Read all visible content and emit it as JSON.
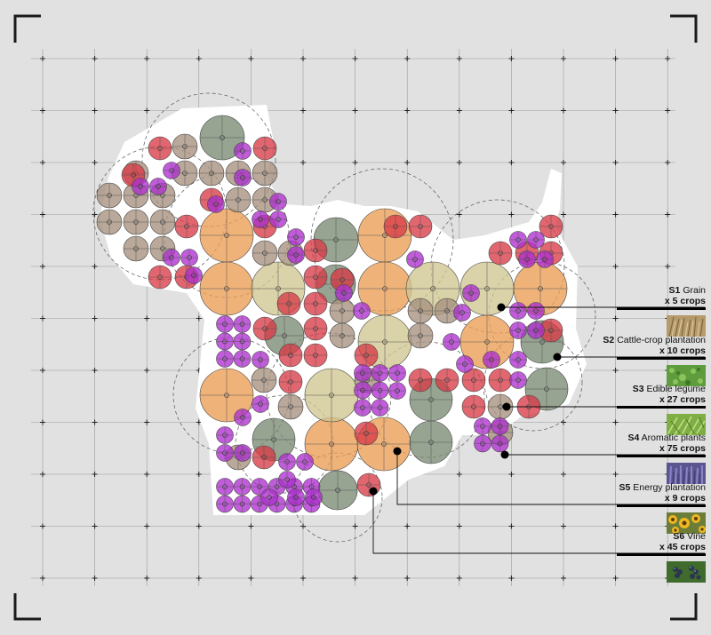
{
  "legend": [
    {
      "code": "S1",
      "name": "Grain",
      "count": "x 5 crops",
      "swatch": "grain-photo",
      "color": "#c9b894"
    },
    {
      "code": "S2",
      "name": "Cattle-crop plantation",
      "count": "x 10 crops",
      "swatch": "grass-photo",
      "color": "#6da84a"
    },
    {
      "code": "S3",
      "name": "Edible legume",
      "count": "x 27 crops",
      "swatch": "legume-photo",
      "color": "#8fb850"
    },
    {
      "code": "S4",
      "name": "Aromatic plants",
      "count": "x 75 crops",
      "swatch": "lavender-photo",
      "color": "#6e5fa8"
    },
    {
      "code": "S5",
      "name": "Energy plantation",
      "count": "x 9 crops",
      "swatch": "sunflower-photo",
      "color": "#e1a822"
    },
    {
      "code": "S6",
      "name": "Vine",
      "count": "x 45 crops",
      "swatch": "grape-photo",
      "color": "#4a5f7a"
    }
  ],
  "colors": {
    "background": "#e1e1e1",
    "grain": "#cfc58f",
    "cattle": "#7a8a73",
    "legume": "#d93b46",
    "aromatic": "#b02fd1",
    "energy": "#eb9d55",
    "vine": "#a7917d",
    "grid": "#888888"
  }
}
